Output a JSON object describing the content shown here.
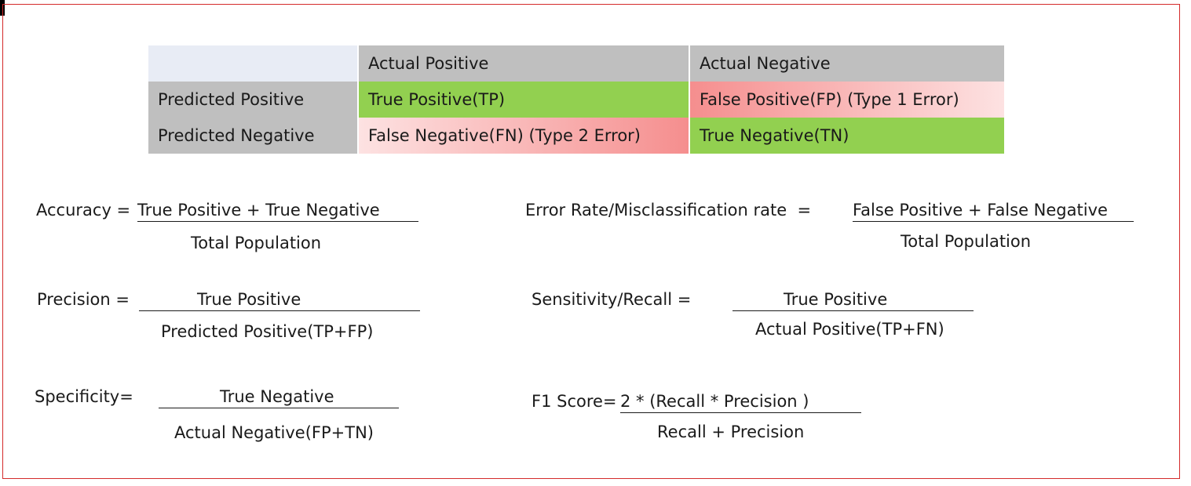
{
  "confusion_matrix": {
    "corner": "",
    "col_headers": [
      "Actual Positive",
      "Actual Negative"
    ],
    "rows": [
      {
        "label": "Predicted Positive",
        "cells": [
          "True Positive(TP)",
          "False Positive(FP) (Type 1 Error)"
        ]
      },
      {
        "label": "Predicted Negative",
        "cells": [
          "False Negative(FN) (Type 2 Error)",
          "True Negative(TN)"
        ]
      }
    ],
    "colors": {
      "header": "#bfbfbf",
      "corner": "#e8ecf5",
      "correct": "#92d050",
      "error": "#f58e8e",
      "frame": "#d42a2a"
    }
  },
  "formulas": {
    "accuracy": {
      "label": "Accuracy =",
      "numerator": "True Positive + True Negative",
      "denominator": "Total Population"
    },
    "error_rate": {
      "label": "Error Rate/Misclassification rate  =",
      "numerator": "False Positive + False Negative",
      "denominator": "Total Population"
    },
    "precision": {
      "label": "Precision =",
      "numerator": "True Positive",
      "denominator": "Predicted Positive(TP+FP)"
    },
    "recall": {
      "label": "Sensitivity/Recall =",
      "numerator": "True Positive",
      "denominator": "Actual Positive(TP+FN)"
    },
    "specificity": {
      "label": "Specificity=",
      "numerator": "True Negative",
      "denominator": "Actual Negative(FP+TN)"
    },
    "f1": {
      "label": "F1 Score=",
      "numerator": "2 * (Recall * Precision )",
      "denominator": "Recall + Precision"
    }
  }
}
